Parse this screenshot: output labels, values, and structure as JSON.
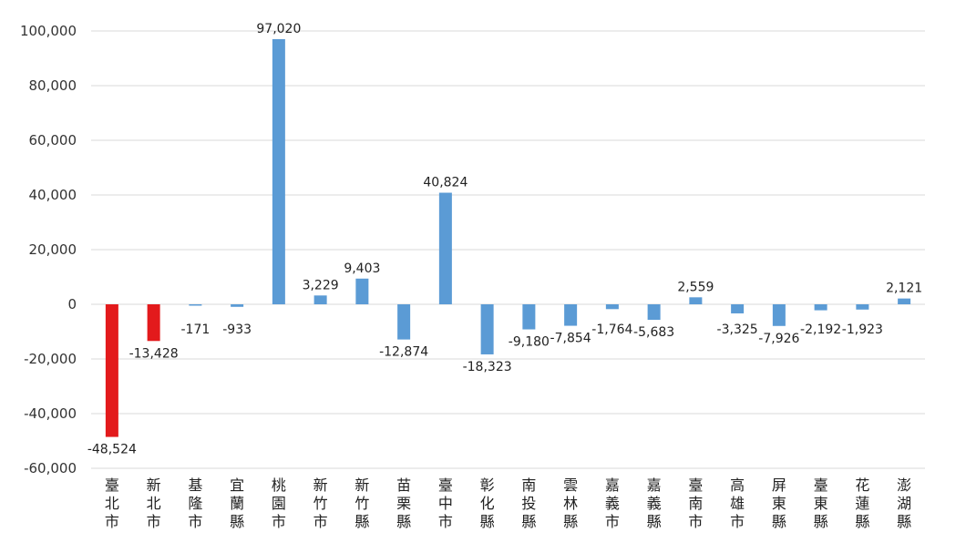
{
  "chart_data": {
    "type": "bar",
    "categories": [
      "臺北市",
      "新北市",
      "基隆市",
      "宜蘭縣",
      "桃園市",
      "新竹市",
      "新竹縣",
      "苗栗縣",
      "臺中市",
      "彰化縣",
      "南投縣",
      "雲林縣",
      "嘉義市",
      "嘉義縣",
      "臺南市",
      "高雄市",
      "屏東縣",
      "臺東縣",
      "花蓮縣",
      "澎湖縣"
    ],
    "values": [
      -48524,
      -13428,
      -171,
      -933,
      97020,
      3229,
      9403,
      -12874,
      40824,
      -18323,
      -9180,
      -7854,
      -1764,
      -5683,
      2559,
      -3325,
      -7926,
      -2192,
      -1923,
      2121
    ],
    "data_labels": [
      "-48,524",
      "-13,428",
      "-171",
      "-933",
      "97,020",
      "3,229",
      "9,403",
      "-12,874",
      "40,824",
      "-18,323",
      "-9,180",
      "-7,854",
      "-1,764",
      "-5,683",
      "2,559",
      "-3,325",
      "-7,926",
      "-2,192",
      "-1,923",
      "2,121"
    ],
    "bar_colors": [
      "#e31a1c",
      "#e31a1c",
      "#5b9bd5",
      "#5b9bd5",
      "#5b9bd5",
      "#5b9bd5",
      "#5b9bd5",
      "#5b9bd5",
      "#5b9bd5",
      "#5b9bd5",
      "#5b9bd5",
      "#5b9bd5",
      "#5b9bd5",
      "#5b9bd5",
      "#5b9bd5",
      "#5b9bd5",
      "#5b9bd5",
      "#5b9bd5",
      "#5b9bd5",
      "#5b9bd5"
    ],
    "y_ticks": [
      100000,
      80000,
      60000,
      40000,
      20000,
      0,
      -20000,
      -40000,
      -60000
    ],
    "y_tick_labels": [
      "100,000",
      "80,000",
      "60,000",
      "40,000",
      "20,000",
      "0",
      "-20,000",
      "-40,000",
      "-60,000"
    ],
    "ylim": [
      -60000,
      100000
    ],
    "grid": true,
    "title": "",
    "xlabel": "",
    "ylabel": ""
  }
}
